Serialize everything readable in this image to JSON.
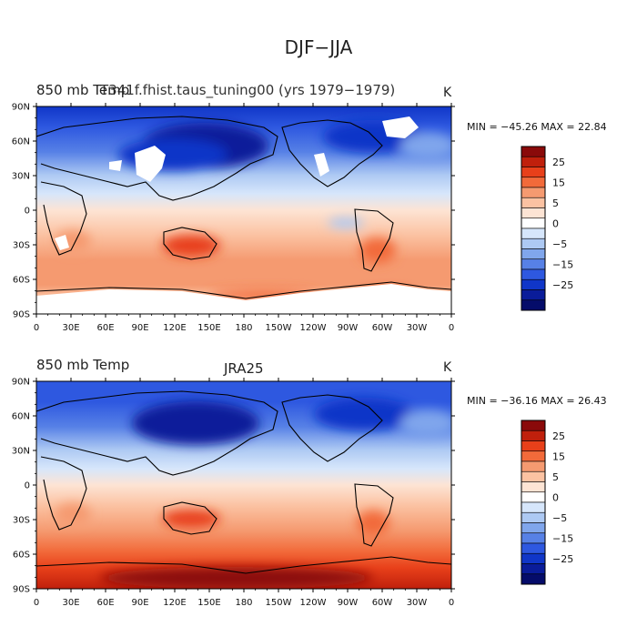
{
  "title": "DJF−JJA",
  "panels": [
    {
      "left_title": "850 mb Temp",
      "center_title": "T341f.fhist.taus_tuning00 (yrs 1979−1979)",
      "units": "K",
      "stats": "MIN = −45.26  MAX =  22.84"
    },
    {
      "left_title": "850 mb Temp",
      "center_title": "JRA25",
      "units": "K",
      "stats": "MIN = −36.16  MAX =  26.43"
    }
  ],
  "axes": {
    "lat_labels": [
      "90N",
      "60N",
      "30N",
      "0",
      "30S",
      "60S",
      "90S"
    ],
    "lon_labels": [
      "0",
      "30E",
      "60E",
      "90E",
      "120E",
      "150E",
      "180",
      "150W",
      "120W",
      "90W",
      "60W",
      "30W",
      "0"
    ]
  },
  "colorbar": {
    "labels": [
      "25",
      "15",
      "5",
      "0",
      "−5",
      "−15",
      "−25"
    ],
    "colors": [
      "#8a0a0a",
      "#c0200c",
      "#e8401a",
      "#f26a3a",
      "#f59a70",
      "#fbc2a2",
      "#fde4d4",
      "#ffffff",
      "#d6e6fb",
      "#adc9f3",
      "#80a6ec",
      "#5781e6",
      "#2e58e0",
      "#1036c8",
      "#0a1c9a",
      "#050c6a"
    ]
  },
  "chart_data": {
    "type": "heatmap",
    "title": "DJF−JJA",
    "variable": "850 mb Temp",
    "units": "K",
    "maps": [
      {
        "dataset": "T341f.fhist.taus_tuning00 (yrs 1979−1979)",
        "min": -45.26,
        "max": 22.84
      },
      {
        "dataset": "JRA25",
        "min": -36.16,
        "max": 26.43
      }
    ],
    "contour_levels": [
      -30,
      -25,
      -20,
      -15,
      -10,
      -5,
      -2,
      0,
      2,
      5,
      10,
      15,
      20,
      25,
      30
    ],
    "longitude_range": [
      0,
      360
    ],
    "latitude_range": [
      -90,
      90
    ]
  }
}
